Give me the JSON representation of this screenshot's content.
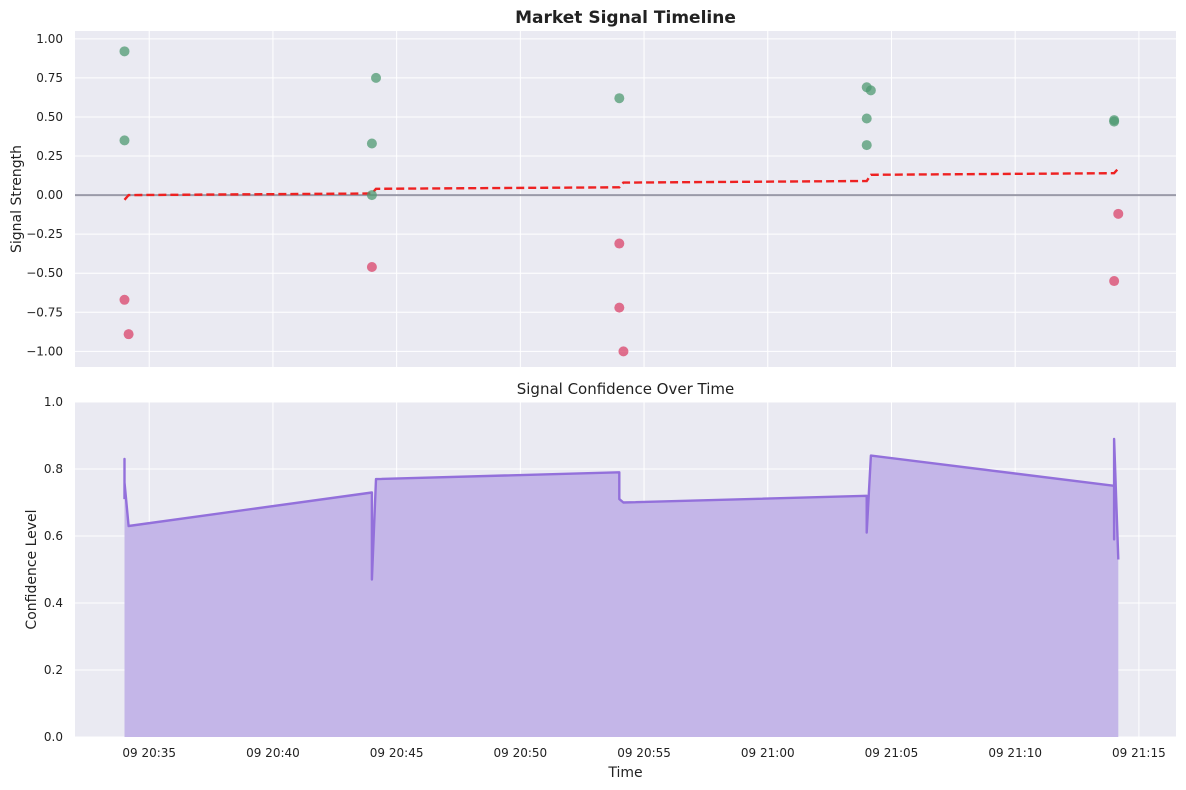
{
  "chart_data": [
    {
      "type": "scatter",
      "title": "Market Signal Timeline",
      "xlabel": "",
      "ylabel": "Signal Strength",
      "xlim": [
        "20:32:00",
        "21:16:30"
      ],
      "ylim": [
        -1.1,
        1.05
      ],
      "yticks": [
        "1.00",
        "0.75",
        "0.50",
        "0.25",
        "0.00",
        "−0.25",
        "−0.50",
        "−0.75",
        "−1.00"
      ],
      "ytick_values": [
        1.0,
        0.75,
        0.5,
        0.25,
        0.0,
        -0.25,
        -0.5,
        -0.75,
        -1.0
      ],
      "grid": true,
      "zero_line": 0.0,
      "colors": {
        "positive": "#4f9a72",
        "negative": "#d9436a",
        "trend": "#ee2222",
        "zero_line": "#9a9aa8"
      },
      "series": [
        {
          "kind": "positive-points",
          "points": [
            {
              "x": "20:34:00",
              "y": 0.92
            },
            {
              "x": "20:34:00",
              "y": 0.35
            },
            {
              "x": "20:44:10",
              "y": 0.75
            },
            {
              "x": "20:44:00",
              "y": 0.33
            },
            {
              "x": "20:44:00",
              "y": 0.0
            },
            {
              "x": "20:54:00",
              "y": 0.62
            },
            {
              "x": "21:04:00",
              "y": 0.69
            },
            {
              "x": "21:04:10",
              "y": 0.67
            },
            {
              "x": "21:04:00",
              "y": 0.49
            },
            {
              "x": "21:04:00",
              "y": 0.32
            },
            {
              "x": "21:14:00",
              "y": 0.48
            },
            {
              "x": "21:14:00",
              "y": 0.47
            }
          ]
        },
        {
          "kind": "negative-points",
          "points": [
            {
              "x": "20:34:00",
              "y": -0.67
            },
            {
              "x": "20:34:10",
              "y": -0.89
            },
            {
              "x": "20:44:00",
              "y": -0.46
            },
            {
              "x": "20:54:00",
              "y": -0.31
            },
            {
              "x": "20:54:00",
              "y": -0.72
            },
            {
              "x": "20:54:10",
              "y": -1.0
            },
            {
              "x": "21:14:00",
              "y": -0.55
            },
            {
              "x": "21:14:10",
              "y": -0.12
            }
          ]
        },
        {
          "kind": "trend-line",
          "points": [
            {
              "x": "20:34:00",
              "y": -0.03
            },
            {
              "x": "20:34:10",
              "y": 0.0
            },
            {
              "x": "20:44:00",
              "y": 0.01
            },
            {
              "x": "20:44:10",
              "y": 0.04
            },
            {
              "x": "20:54:00",
              "y": 0.05
            },
            {
              "x": "20:54:10",
              "y": 0.08
            },
            {
              "x": "21:04:00",
              "y": 0.09
            },
            {
              "x": "21:04:10",
              "y": 0.13
            },
            {
              "x": "21:14:00",
              "y": 0.14
            },
            {
              "x": "21:14:10",
              "y": 0.17
            }
          ]
        }
      ]
    },
    {
      "type": "area",
      "title": "Signal Confidence Over Time",
      "xlabel": "Time",
      "ylabel": "Confidence Level",
      "xlim": [
        "20:32:00",
        "21:16:30"
      ],
      "ylim": [
        0.0,
        1.0
      ],
      "yticks": [
        "0.0",
        "0.2",
        "0.4",
        "0.6",
        "0.8",
        "1.0"
      ],
      "ytick_values": [
        0.0,
        0.2,
        0.4,
        0.6,
        0.8,
        1.0
      ],
      "xticks": [
        "09 20:35",
        "09 20:40",
        "09 20:45",
        "09 20:50",
        "09 20:55",
        "09 21:00",
        "09 21:05",
        "09 21:10",
        "09 21:15"
      ],
      "xtick_values": [
        "20:35:00",
        "20:40:00",
        "20:45:00",
        "20:50:00",
        "20:55:00",
        "21:00:00",
        "21:05:00",
        "21:10:00",
        "21:15:00"
      ],
      "grid": true,
      "colors": {
        "line": "#9370db",
        "fill": "#c4b6e8"
      },
      "series": [
        {
          "points": [
            {
              "x": "20:34:00",
              "y": 0.71
            },
            {
              "x": "20:34:00",
              "y": 0.83
            },
            {
              "x": "20:34:00",
              "y": 0.76
            },
            {
              "x": "20:34:10",
              "y": 0.63
            },
            {
              "x": "20:44:00",
              "y": 0.73
            },
            {
              "x": "20:44:00",
              "y": 0.47
            },
            {
              "x": "20:44:10",
              "y": 0.77
            },
            {
              "x": "20:54:00",
              "y": 0.79
            },
            {
              "x": "20:54:00",
              "y": 0.71
            },
            {
              "x": "20:54:10",
              "y": 0.7
            },
            {
              "x": "21:04:00",
              "y": 0.72
            },
            {
              "x": "21:04:00",
              "y": 0.61
            },
            {
              "x": "21:04:10",
              "y": 0.84
            },
            {
              "x": "21:14:00",
              "y": 0.75
            },
            {
              "x": "21:14:00",
              "y": 0.59
            },
            {
              "x": "21:14:00",
              "y": 0.89
            },
            {
              "x": "21:14:10",
              "y": 0.53
            }
          ]
        }
      ]
    }
  ]
}
